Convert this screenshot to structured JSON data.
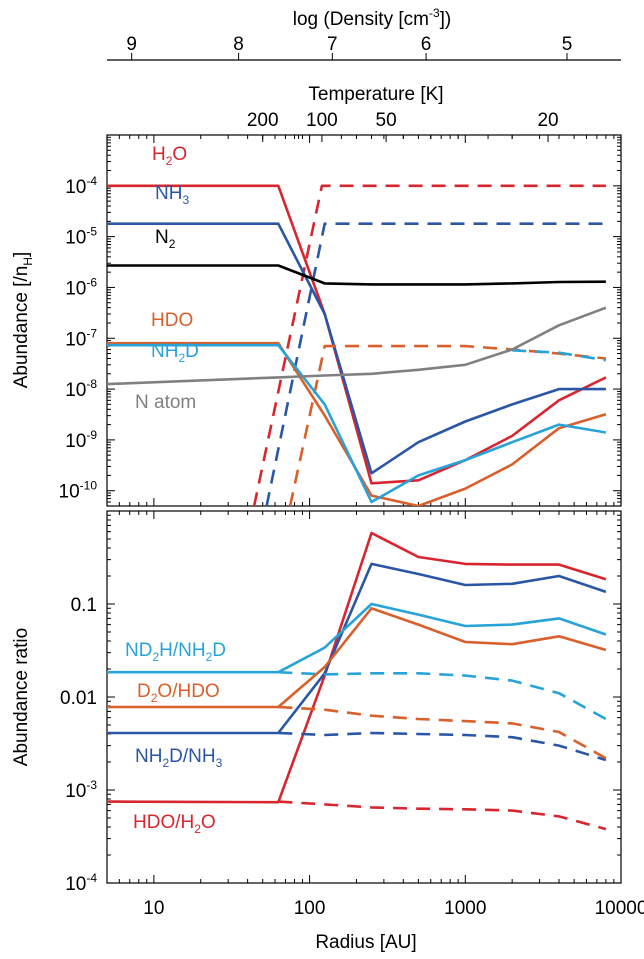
{
  "colors": {
    "red": "#d7262f",
    "blue": "#2a56a5",
    "black": "#000000",
    "orange": "#d95f2b",
    "cyan": "#27a3d8",
    "gray": "#808080"
  },
  "top_axes": {
    "density": {
      "label_main": "log (Density [cm",
      "label_sup": "-3",
      "label_end": "])",
      "ticks": [
        {
          "radius": 7.2,
          "label": "9"
        },
        {
          "radius": 35,
          "label": "8"
        },
        {
          "radius": 140,
          "label": "7"
        },
        {
          "radius": 560,
          "label": "6"
        },
        {
          "radius": 4500,
          "label": "5"
        }
      ]
    },
    "temperature": {
      "label": "Temperature [K]",
      "ticks": [
        {
          "radius": 50,
          "label": "200"
        },
        {
          "radius": 120,
          "label": "100"
        },
        {
          "radius": 310,
          "label": "50"
        },
        {
          "radius": 3400,
          "label": "20"
        }
      ]
    }
  },
  "chart_data": [
    {
      "type": "line",
      "panel": "top",
      "ylabel": "Abundance [/nH]",
      "ylabel_main": "Abundance [/n",
      "ylabel_sub": "H",
      "ylabel_end": "]",
      "xscale": "log",
      "yscale": "log",
      "xlim": [
        5,
        10000
      ],
      "ylim": [
        5e-11,
        0.001
      ],
      "yticks": [
        {
          "value": 1e-10,
          "base": "10",
          "exp": "-10"
        },
        {
          "value": 1e-09,
          "base": "10",
          "exp": "-9"
        },
        {
          "value": 1e-08,
          "base": "10",
          "exp": "-8"
        },
        {
          "value": 1e-07,
          "base": "10",
          "exp": "-7"
        },
        {
          "value": 1e-06,
          "base": "10",
          "exp": "-6"
        },
        {
          "value": 1e-05,
          "base": "10",
          "exp": "-5"
        },
        {
          "value": 0.0001,
          "base": "10",
          "exp": "-4"
        }
      ],
      "series": [
        {
          "name": "H2O",
          "color": "red",
          "style": "solid",
          "x": [
            5,
            63,
            125,
            250,
            500,
            1000,
            2000,
            4000,
            8000
          ],
          "y": [
            0.0001,
            0.0001,
            3e-07,
            1.4e-10,
            1.6e-10,
            4e-10,
            1.2e-09,
            6e-09,
            1.7e-08
          ]
        },
        {
          "name": "H2O gas",
          "color": "red",
          "style": "dashed",
          "x": [
            44,
            120,
            125,
            8000
          ],
          "y": [
            5e-11,
            0.0001,
            0.0001,
            0.0001
          ]
        },
        {
          "name": "NH3",
          "color": "blue",
          "style": "solid",
          "x": [
            5,
            63,
            125,
            250,
            500,
            1000,
            2000,
            4000,
            8000
          ],
          "y": [
            1.8e-05,
            1.8e-05,
            3e-07,
            2.2e-10,
            9e-10,
            2.3e-09,
            5e-09,
            1e-08,
            1e-08
          ]
        },
        {
          "name": "NH3 gas",
          "color": "blue",
          "style": "dashed",
          "x": [
            53,
            125,
            8000
          ],
          "y": [
            5e-11,
            1.8e-05,
            1.8e-05
          ]
        },
        {
          "name": "N2",
          "color": "black",
          "style": "solid",
          "x": [
            5,
            63,
            125,
            250,
            500,
            1000,
            2000,
            4000,
            8000
          ],
          "y": [
            2.7e-06,
            2.7e-06,
            1.2e-06,
            1.15e-06,
            1.15e-06,
            1.15e-06,
            1.2e-06,
            1.28e-06,
            1.3e-06
          ]
        },
        {
          "name": "HDO",
          "color": "orange",
          "style": "solid",
          "x": [
            5,
            63,
            125,
            250,
            500,
            1000,
            2000,
            4000,
            8000
          ],
          "y": [
            8e-08,
            8e-08,
            3e-09,
            8e-11,
            5e-11,
            1.1e-10,
            3.3e-10,
            1.7e-09,
            3.2e-09
          ]
        },
        {
          "name": "HDO gas",
          "color": "orange",
          "style": "dashed",
          "x": [
            75,
            125,
            250,
            1000,
            2000,
            4000,
            8000
          ],
          "y": [
            5e-11,
            7e-08,
            7e-08,
            7e-08,
            6e-08,
            5e-08,
            4e-08
          ]
        },
        {
          "name": "NH2D",
          "color": "cyan",
          "style": "solid",
          "x": [
            5,
            63,
            125,
            250,
            500,
            1000,
            2000,
            4000,
            8000
          ],
          "y": [
            7.3e-08,
            7.3e-08,
            5e-09,
            6e-11,
            2e-10,
            4e-10,
            9e-10,
            2e-09,
            1.4e-09
          ]
        },
        {
          "name": "NH2D gas",
          "color": "cyan",
          "style": "dashed",
          "x": [
            2000,
            4000,
            8000
          ],
          "y": [
            5.8e-08,
            5.2e-08,
            3.7e-08
          ]
        },
        {
          "name": "N atom",
          "color": "gray",
          "style": "solid",
          "x": [
            5,
            63,
            125,
            250,
            500,
            1000,
            2000,
            4000,
            8000
          ],
          "y": [
            1.25e-08,
            1.7e-08,
            1.85e-08,
            2e-08,
            2.4e-08,
            3e-08,
            6e-08,
            1.8e-07,
            4e-07
          ]
        }
      ],
      "labels": [
        {
          "series": "H2O",
          "color": "red",
          "main": "H",
          "sub": "2",
          "end": "O"
        },
        {
          "series": "NH3",
          "color": "blue",
          "main": "NH",
          "sub": "3",
          "end": ""
        },
        {
          "series": "N2",
          "color": "black",
          "main": "N",
          "sub": "2",
          "end": ""
        },
        {
          "series": "HDO",
          "color": "orange",
          "main": "HDO",
          "sub": "",
          "end": ""
        },
        {
          "series": "NH2D",
          "color": "cyan",
          "main": "NH",
          "sub": "2",
          "end": "D"
        },
        {
          "series": "N atom",
          "color": "gray",
          "main": "N atom",
          "sub": "",
          "end": ""
        }
      ]
    },
    {
      "type": "line",
      "panel": "bottom",
      "xlabel": "Radius [AU]",
      "ylabel": "Abundance ratio",
      "xscale": "log",
      "yscale": "log",
      "xlim": [
        5,
        10000
      ],
      "ylim": [
        0.0001,
        1
      ],
      "xticks": [
        {
          "value": 10,
          "label": "10"
        },
        {
          "value": 100,
          "label": "100"
        },
        {
          "value": 1000,
          "label": "1000"
        },
        {
          "value": 10000,
          "label": "10000"
        }
      ],
      "yticks": [
        {
          "value": 0.0001,
          "label": "",
          "base": "10",
          "exp": "-4"
        },
        {
          "value": 0.001,
          "label": "",
          "base": "10",
          "exp": "-3"
        },
        {
          "value": 0.01,
          "label": "0.01",
          "base": "",
          "exp": ""
        },
        {
          "value": 0.1,
          "label": "0.1",
          "base": "",
          "exp": ""
        }
      ],
      "series": [
        {
          "name": "HDO/H2O",
          "color": "red",
          "style": "solid",
          "x": [
            5,
            63,
            125,
            250,
            500,
            1000,
            2000,
            4000,
            8000
          ],
          "y": [
            0.00075,
            0.00074,
            0.017,
            0.58,
            0.32,
            0.27,
            0.265,
            0.265,
            0.185
          ]
        },
        {
          "name": "HDO/H2O gas",
          "color": "red",
          "style": "dashed",
          "x": [
            63,
            125,
            250,
            500,
            1000,
            2000,
            4000,
            8000
          ],
          "y": [
            0.00075,
            0.0007,
            0.00065,
            0.00063,
            0.00062,
            0.0006,
            0.00052,
            0.00038
          ]
        },
        {
          "name": "NH2D/NH3",
          "color": "blue",
          "style": "solid",
          "x": [
            5,
            63,
            125,
            250,
            500,
            1000,
            2000,
            4000,
            8000
          ],
          "y": [
            0.0041,
            0.0041,
            0.018,
            0.27,
            0.21,
            0.16,
            0.165,
            0.2,
            0.135
          ]
        },
        {
          "name": "NH2D/NH3 gas",
          "color": "blue",
          "style": "dashed",
          "x": [
            63,
            125,
            250,
            500,
            1000,
            2000,
            4000,
            8000
          ],
          "y": [
            0.0041,
            0.0039,
            0.0041,
            0.004,
            0.0039,
            0.0037,
            0.003,
            0.0021
          ]
        },
        {
          "name": "ND2H/NH2D",
          "color": "cyan",
          "style": "solid",
          "x": [
            5,
            63,
            125,
            250,
            500,
            1000,
            2000,
            4000,
            8000
          ],
          "y": [
            0.0185,
            0.0185,
            0.034,
            0.1,
            0.077,
            0.058,
            0.06,
            0.07,
            0.047
          ]
        },
        {
          "name": "ND2H/NH2D gas",
          "color": "cyan",
          "style": "dashed",
          "x": [
            63,
            125,
            250,
            500,
            1000,
            2000,
            4000,
            8000
          ],
          "y": [
            0.0185,
            0.0175,
            0.018,
            0.018,
            0.017,
            0.015,
            0.011,
            0.0058
          ]
        },
        {
          "name": "D2O/HDO",
          "color": "orange",
          "style": "solid",
          "x": [
            5,
            63,
            125,
            250,
            500,
            1000,
            2000,
            4000,
            8000
          ],
          "y": [
            0.0078,
            0.0078,
            0.021,
            0.09,
            0.06,
            0.039,
            0.037,
            0.045,
            0.032
          ]
        },
        {
          "name": "D2O/HDO gas",
          "color": "orange",
          "style": "dashed",
          "x": [
            63,
            125,
            250,
            500,
            1000,
            2000,
            4000,
            8000
          ],
          "y": [
            0.0078,
            0.0073,
            0.0063,
            0.0058,
            0.0055,
            0.0052,
            0.0042,
            0.0022
          ]
        }
      ],
      "labels": [
        {
          "series": "ND2H/NH2D",
          "color": "cyan",
          "parts": [
            [
              "ND",
              ""
            ],
            [
              "2",
              "sub"
            ],
            [
              "H/NH",
              ""
            ],
            [
              "2",
              "sub"
            ],
            [
              "D",
              ""
            ]
          ]
        },
        {
          "series": "D2O/HDO",
          "color": "orange",
          "parts": [
            [
              "D",
              ""
            ],
            [
              "2",
              "sub"
            ],
            [
              "O/HDO",
              ""
            ]
          ]
        },
        {
          "series": "NH2D/NH3",
          "color": "blue",
          "parts": [
            [
              "NH",
              ""
            ],
            [
              "2",
              "sub"
            ],
            [
              "D/NH",
              ""
            ],
            [
              "3",
              "sub"
            ]
          ]
        },
        {
          "series": "HDO/H2O",
          "color": "red",
          "parts": [
            [
              "HDO/H",
              ""
            ],
            [
              "2",
              "sub"
            ],
            [
              "O",
              ""
            ]
          ]
        }
      ]
    }
  ]
}
